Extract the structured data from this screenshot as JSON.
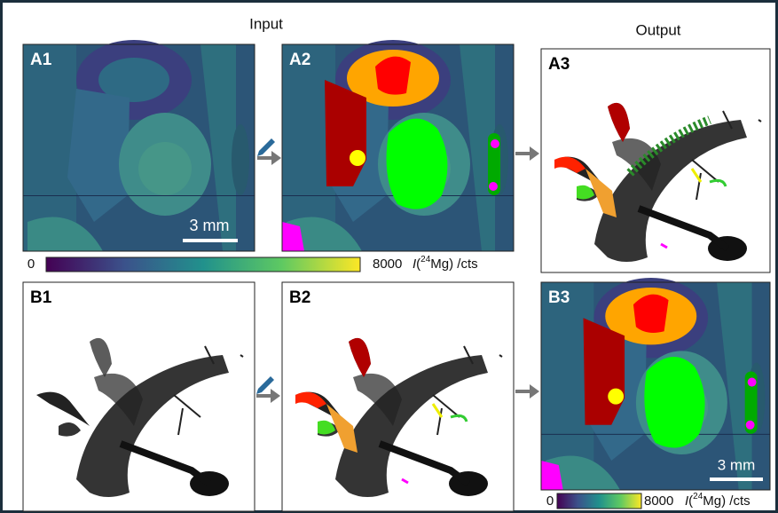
{
  "header": {
    "input": "Input",
    "output": "Output"
  },
  "panels": {
    "a1": "A1",
    "a2": "A2",
    "a3": "A3",
    "b1": "B1",
    "b2": "B2",
    "b3": "B3"
  },
  "scale_bar": {
    "a1": "3 mm",
    "b3": "3 mm"
  },
  "colorbar": {
    "min": 0,
    "max": 8000,
    "label": {
      "symbol": "I",
      "open": "(",
      "isotope": "24",
      "rest": "Mg) /cts"
    }
  }
}
